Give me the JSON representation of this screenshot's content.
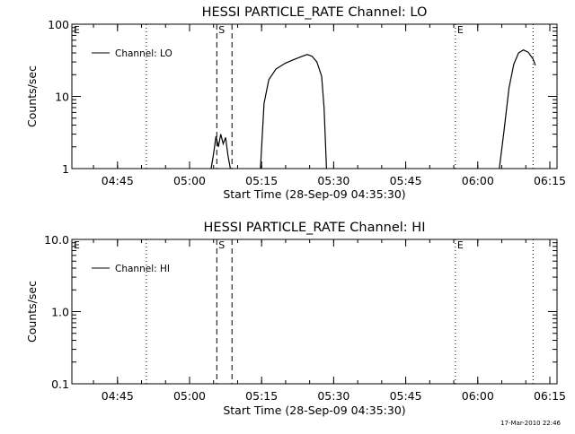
{
  "chart_data": [
    {
      "type": "line",
      "title": "HESSI PARTICLE_RATE Channel: LO",
      "xlabel": "Start Time (28-Sep-09 04:35:30)",
      "ylabel": "Counts/sec",
      "y_scale": "log",
      "ylim": [
        1,
        100
      ],
      "xlim": [
        "04:35:30",
        "06:16:30"
      ],
      "x_ticks": [
        "04:45",
        "05:00",
        "05:15",
        "05:30",
        "05:45",
        "06:00",
        "06:15"
      ],
      "y_ticks": [
        "1",
        "10",
        "100"
      ],
      "legend_position": "top-left",
      "series": [
        {
          "name": "Channel: LO",
          "segments": [
            [
              [
                "05:04:30",
                1.0
              ],
              [
                "05:05:00",
                1.6
              ],
              [
                "05:05:30",
                2.8
              ],
              [
                "05:06:00",
                2.0
              ],
              [
                "05:06:30",
                3.0
              ],
              [
                "05:07:00",
                2.2
              ],
              [
                "05:07:30",
                2.7
              ],
              [
                "05:08:00",
                1.5
              ],
              [
                "05:08:30",
                1.0
              ]
            ],
            [
              [
                "05:14:45",
                1.0
              ],
              [
                "05:15:30",
                8.0
              ],
              [
                "05:16:30",
                17
              ],
              [
                "05:18:00",
                24
              ],
              [
                "05:20:00",
                29
              ],
              [
                "05:22:00",
                33
              ],
              [
                "05:23:30",
                36
              ],
              [
                "05:24:30",
                38
              ],
              [
                "05:25:30",
                36
              ],
              [
                "05:26:30",
                30
              ],
              [
                "05:27:30",
                19
              ],
              [
                "05:28:00",
                7
              ],
              [
                "05:28:30",
                1.0
              ]
            ],
            [
              [
                "06:04:30",
                1.0
              ],
              [
                "06:05:30",
                3.5
              ],
              [
                "06:06:30",
                13
              ],
              [
                "06:07:30",
                28
              ],
              [
                "06:08:30",
                40
              ],
              [
                "06:09:30",
                44
              ],
              [
                "06:10:30",
                41
              ],
              [
                "06:11:30",
                33
              ],
              [
                "06:12:00",
                27
              ]
            ]
          ]
        }
      ],
      "markers": [
        {
          "label": "E",
          "time": "04:35:30",
          "style": "dotted"
        },
        {
          "label": "",
          "time": "04:51:00",
          "style": "dotted"
        },
        {
          "label": "S",
          "time": "05:05:40",
          "style": "dashed"
        },
        {
          "label": "",
          "time": "05:08:50",
          "style": "dashed"
        },
        {
          "label": "E",
          "time": "05:55:20",
          "style": "dotted"
        },
        {
          "label": "",
          "time": "06:11:30",
          "style": "dotted"
        }
      ]
    },
    {
      "type": "line",
      "title": "HESSI PARTICLE_RATE Channel: HI",
      "xlabel": "Start Time (28-Sep-09 04:35:30)",
      "ylabel": "Counts/sec",
      "y_scale": "log",
      "ylim": [
        0.1,
        10.0
      ],
      "xlim": [
        "04:35:30",
        "06:16:30"
      ],
      "x_ticks": [
        "04:45",
        "05:00",
        "05:15",
        "05:30",
        "05:45",
        "06:00",
        "06:15"
      ],
      "y_ticks": [
        "0.1",
        "1.0",
        "10.0"
      ],
      "legend_position": "top-left",
      "series": [
        {
          "name": "Channel: HI",
          "segments": []
        }
      ],
      "markers": [
        {
          "label": "E",
          "time": "04:35:30",
          "style": "dotted"
        },
        {
          "label": "",
          "time": "04:51:00",
          "style": "dotted"
        },
        {
          "label": "S",
          "time": "05:05:40",
          "style": "dashed"
        },
        {
          "label": "",
          "time": "05:08:50",
          "style": "dashed"
        },
        {
          "label": "E",
          "time": "05:55:20",
          "style": "dotted"
        },
        {
          "label": "",
          "time": "06:11:30",
          "style": "dotted"
        }
      ]
    }
  ],
  "footer": {
    "timestamp": "17-Mar-2010 22:46"
  }
}
